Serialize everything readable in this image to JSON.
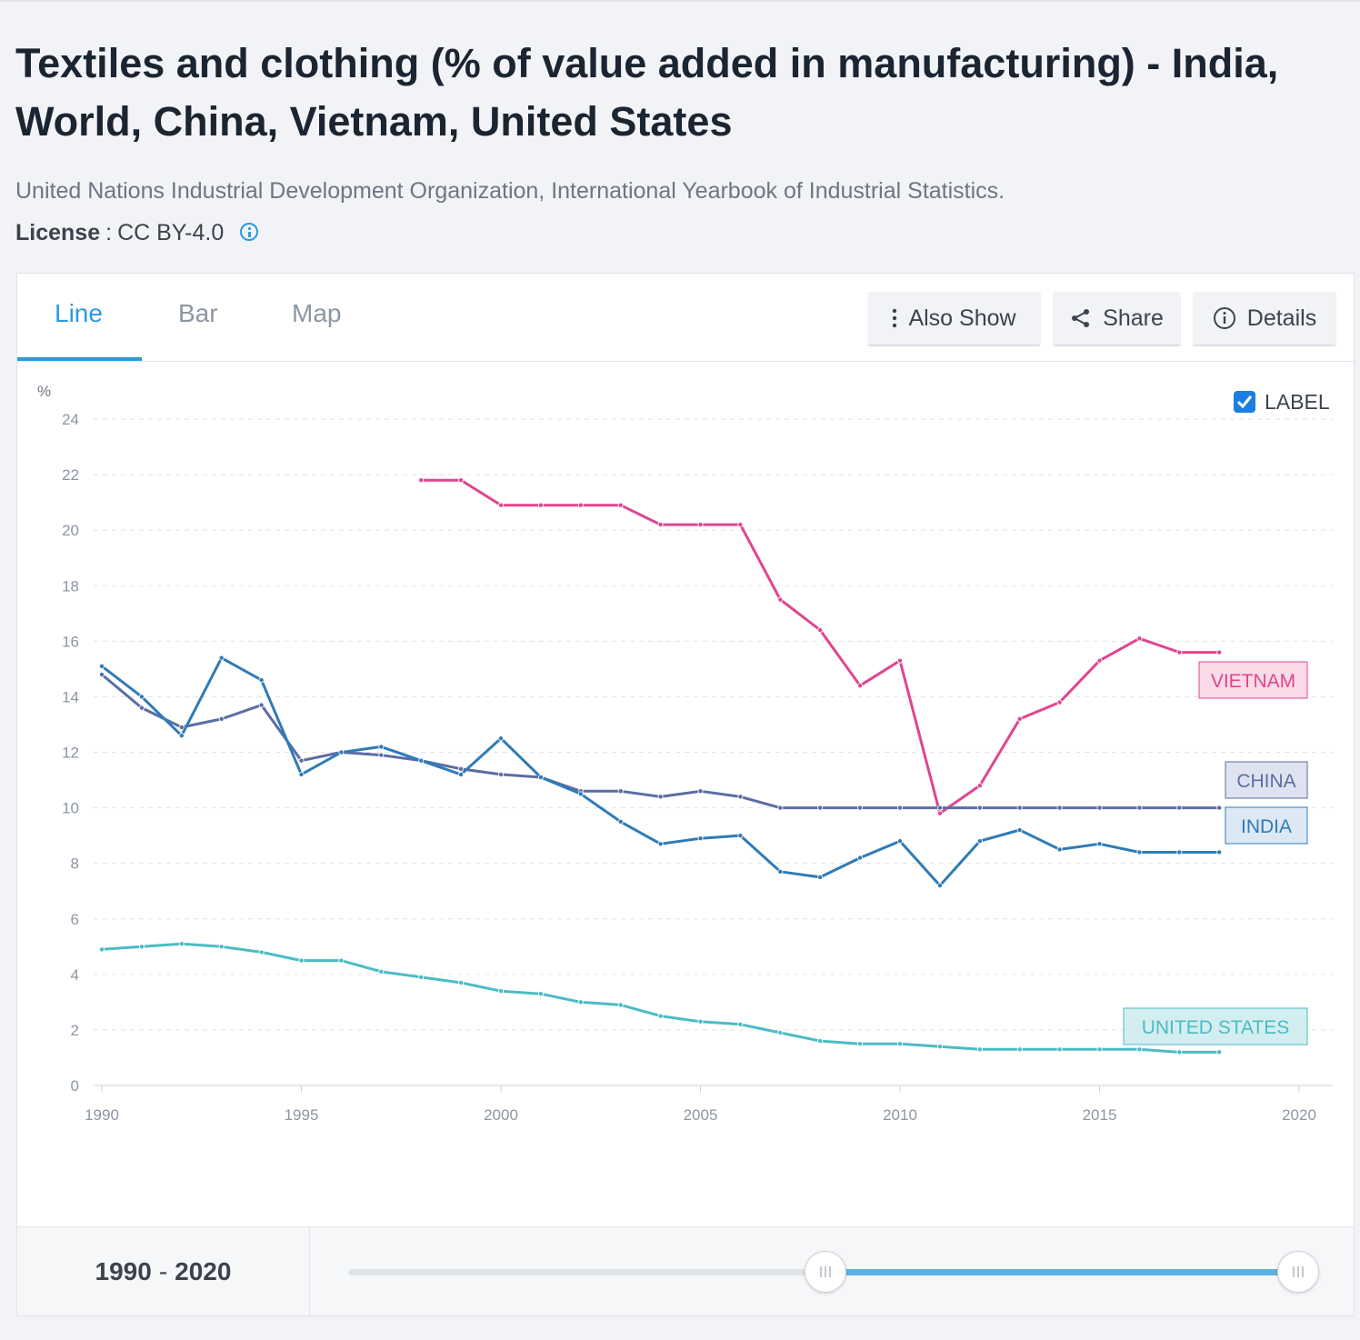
{
  "header": {
    "title": "Textiles and clothing (% of value added in manufacturing) - India, World, China, Vietnam, United States",
    "source": "United Nations Industrial Development Organization, International Yearbook of Industrial Statistics.",
    "license_label": "License",
    "license_sep": ":",
    "license_value": "CC BY-4.0"
  },
  "tabs": [
    {
      "label": "Line",
      "active": true
    },
    {
      "label": "Bar",
      "active": false
    },
    {
      "label": "Map",
      "active": false
    }
  ],
  "toolbar": {
    "also_show": "Also Show",
    "share": "Share",
    "details": "Details"
  },
  "label_toggle": {
    "label": "LABEL",
    "checked": true
  },
  "range": {
    "start": "1990",
    "sep": "-",
    "end": "2020"
  },
  "chart_data": {
    "type": "line",
    "ylabel": "%",
    "xlim": [
      1990,
      2020
    ],
    "ylim": [
      0,
      24
    ],
    "xticks": [
      1990,
      1995,
      2000,
      2005,
      2010,
      2015,
      2020
    ],
    "yticks": [
      0,
      2,
      4,
      6,
      8,
      10,
      12,
      14,
      16,
      18,
      20,
      22,
      24
    ],
    "grid": true,
    "series": [
      {
        "name": "VIETNAM",
        "color": "#e0458f",
        "label_bg": "#fbdbe8",
        "x": [
          1998,
          1999,
          2000,
          2001,
          2002,
          2003,
          2004,
          2005,
          2006,
          2007,
          2008,
          2009,
          2010,
          2011,
          2012,
          2013,
          2014,
          2015,
          2016,
          2017,
          2018
        ],
        "values": [
          21.8,
          21.8,
          20.9,
          20.9,
          20.9,
          20.9,
          20.2,
          20.2,
          20.2,
          17.5,
          16.4,
          14.4,
          15.3,
          9.8,
          10.8,
          13.2,
          13.8,
          15.3,
          16.1,
          15.6,
          15.6
        ]
      },
      {
        "name": "CHINA",
        "color": "#5b6ea3",
        "label_bg": "#dfe3f0",
        "x": [
          1990,
          1991,
          1992,
          1993,
          1994,
          1995,
          1996,
          1997,
          1998,
          1999,
          2000,
          2001,
          2002,
          2003,
          2004,
          2005,
          2006,
          2007,
          2008,
          2009,
          2010,
          2011,
          2012,
          2013,
          2014,
          2015,
          2016,
          2017,
          2018
        ],
        "values": [
          14.8,
          13.6,
          12.9,
          13.2,
          13.7,
          11.7,
          12.0,
          11.9,
          11.7,
          11.4,
          11.2,
          11.1,
          10.6,
          10.6,
          10.4,
          10.6,
          10.4,
          10.0,
          10.0,
          10.0,
          10.0,
          10.0,
          10.0,
          10.0,
          10.0,
          10.0,
          10.0,
          10.0,
          10.0
        ]
      },
      {
        "name": "INDIA",
        "color": "#2f7bb6",
        "label_bg": "#dce9f4",
        "x": [
          1990,
          1991,
          1992,
          1993,
          1994,
          1995,
          1996,
          1997,
          1998,
          1999,
          2000,
          2001,
          2002,
          2003,
          2004,
          2005,
          2006,
          2007,
          2008,
          2009,
          2010,
          2011,
          2012,
          2013,
          2014,
          2015,
          2016,
          2017,
          2018
        ],
        "values": [
          15.1,
          14.0,
          12.6,
          15.4,
          14.6,
          11.2,
          12.0,
          12.2,
          11.7,
          11.2,
          12.5,
          11.1,
          10.5,
          9.5,
          8.7,
          8.9,
          9.0,
          7.7,
          7.5,
          8.2,
          8.8,
          7.2,
          8.8,
          9.2,
          8.5,
          8.7,
          8.4,
          8.4,
          8.4
        ]
      },
      {
        "name": "UNITED STATES",
        "color": "#4bbcc4",
        "label_bg": "#d3eef0",
        "x": [
          1990,
          1991,
          1992,
          1993,
          1994,
          1995,
          1996,
          1997,
          1998,
          1999,
          2000,
          2001,
          2002,
          2003,
          2004,
          2005,
          2006,
          2007,
          2008,
          2009,
          2010,
          2011,
          2012,
          2013,
          2014,
          2015,
          2016,
          2017,
          2018
        ],
        "values": [
          4.9,
          5.0,
          5.1,
          5.0,
          4.8,
          4.5,
          4.5,
          4.1,
          3.9,
          3.7,
          3.4,
          3.3,
          3.0,
          2.9,
          2.5,
          2.3,
          2.2,
          1.9,
          1.6,
          1.5,
          1.5,
          1.4,
          1.3,
          1.3,
          1.3,
          1.3,
          1.3,
          1.2,
          1.2
        ]
      }
    ]
  }
}
